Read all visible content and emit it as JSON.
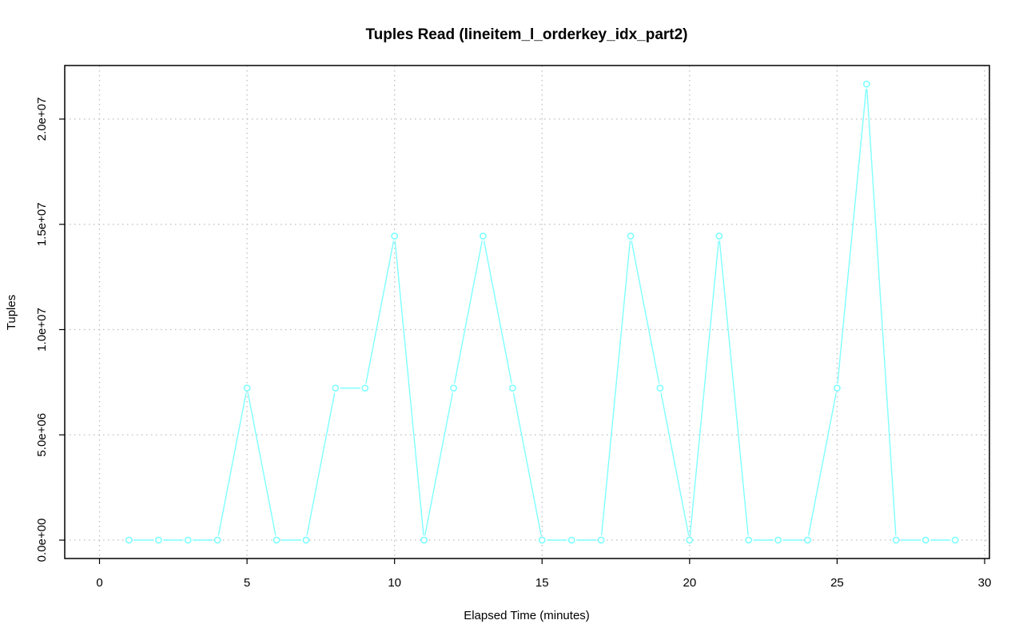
{
  "chart_data": {
    "type": "line",
    "title": "Tuples Read (lineitem_l_orderkey_idx_part2)",
    "xlabel": "Elapsed Time (minutes)",
    "ylabel": "Tuples",
    "xlim": [
      0,
      30
    ],
    "ylim": [
      0,
      22000000
    ],
    "x_ticks": [
      0,
      5,
      10,
      15,
      20,
      25,
      30
    ],
    "x_tick_labels": [
      "0",
      "5",
      "10",
      "15",
      "20",
      "25",
      "30"
    ],
    "y_ticks": [
      0,
      5000000,
      10000000,
      15000000,
      20000000
    ],
    "y_tick_labels": [
      "0.0e+00",
      "5.0e+06",
      "1.0e+07",
      "1.5e+07",
      "2.0e+07"
    ],
    "grid": true,
    "line_style": "b",
    "series": [
      {
        "color": "#7fffff",
        "x": [
          1,
          2,
          3,
          4,
          5,
          6,
          7,
          8,
          9,
          10,
          11,
          12,
          13,
          14,
          15,
          16,
          17,
          18,
          19,
          20,
          21,
          22,
          23,
          24,
          25,
          26,
          27,
          28,
          29
        ],
        "values": [
          0,
          0,
          0,
          0,
          7220000,
          0,
          0,
          7220000,
          7220000,
          14440000,
          0,
          7220000,
          14440000,
          7220000,
          0,
          0,
          0,
          14440000,
          7220000,
          0,
          14440000,
          0,
          0,
          0,
          7220000,
          21660000,
          0,
          0,
          0
        ]
      }
    ]
  }
}
